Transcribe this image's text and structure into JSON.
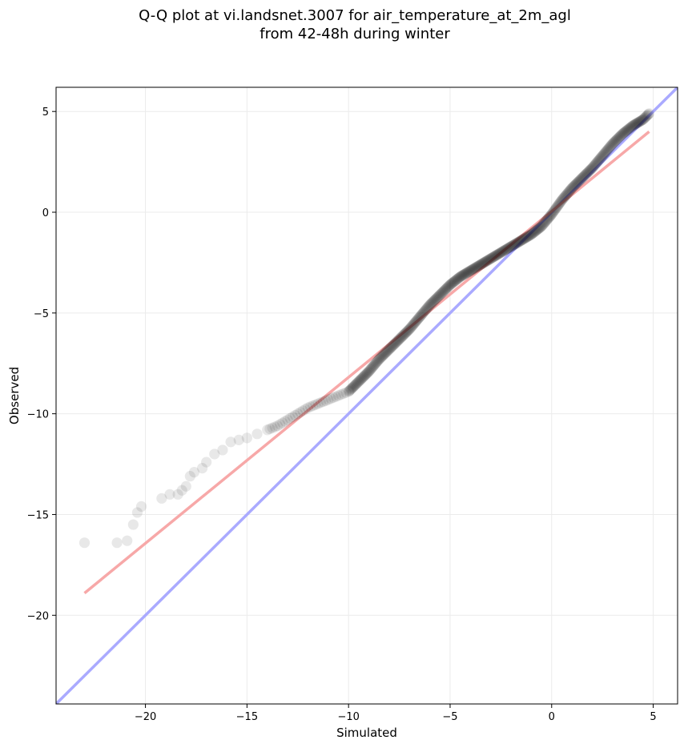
{
  "title_line1": "Q-Q plot at vi.landsnet.3007 for air_temperature_at_2m_agl",
  "title_line2": "from 42-48h during winter",
  "chart_data": {
    "type": "scatter",
    "xlabel": "Simulated",
    "ylabel": "Observed",
    "xlim": [
      -24.4,
      6.2
    ],
    "ylim": [
      -24.4,
      6.2
    ],
    "xticks": [
      -20,
      -15,
      -10,
      -5,
      0,
      5
    ],
    "yticks": [
      -20,
      -15,
      -10,
      -5,
      0,
      5
    ],
    "xtick_labels": [
      "−20",
      "−15",
      "−10",
      "−5",
      "0",
      "5"
    ],
    "ytick_labels": [
      "−20",
      "−15",
      "−10",
      "−5",
      "0",
      "5"
    ],
    "grid": true,
    "colors": {
      "points": "#000000",
      "identity_line": "#aaaaff",
      "fit_line": "#f7a8a8"
    },
    "identity_line": {
      "x": [
        -24.4,
        6.2
      ],
      "y": [
        -24.4,
        6.2
      ]
    },
    "fit_line": {
      "x": [
        -23.0,
        4.8
      ],
      "y": [
        -18.9,
        4.0
      ]
    },
    "qq_knots": {
      "x": [
        -23.0,
        -21.4,
        -20.9,
        -20.6,
        -20.4,
        -20.2,
        -19.2,
        -18.8,
        -18.4,
        -18.2,
        -18.0,
        -17.8,
        -17.6,
        -17.2,
        -17.0,
        -16.6,
        -16.2,
        -15.8,
        -15.4,
        -15.0,
        -14.5,
        -14.0,
        -13.5,
        -13.0,
        -12.5,
        -12.0,
        -11.5,
        -11.0,
        -10.5,
        -10.0,
        -9.5,
        -9.0,
        -8.5,
        -8.0,
        -7.5,
        -7.0,
        -6.5,
        -6.0,
        -5.5,
        -5.0,
        -4.5,
        -4.0,
        -3.5,
        -3.0,
        -2.5,
        -2.0,
        -1.5,
        -1.0,
        -0.5,
        0.0,
        0.5,
        1.0,
        1.5,
        2.0,
        2.5,
        3.0,
        3.5,
        4.0,
        4.5,
        4.8
      ],
      "y": [
        -16.4,
        -16.4,
        -16.3,
        -15.5,
        -14.9,
        -14.6,
        -14.2,
        -14.0,
        -14.0,
        -13.8,
        -13.6,
        -13.1,
        -12.9,
        -12.7,
        -12.4,
        -12.0,
        -11.8,
        -11.4,
        -11.3,
        -11.2,
        -11.0,
        -10.8,
        -10.6,
        -10.3,
        -10.0,
        -9.7,
        -9.5,
        -9.3,
        -9.1,
        -8.9,
        -8.4,
        -7.9,
        -7.3,
        -6.8,
        -6.3,
        -5.8,
        -5.2,
        -4.6,
        -4.1,
        -3.6,
        -3.2,
        -2.9,
        -2.6,
        -2.3,
        -2.0,
        -1.7,
        -1.4,
        -1.1,
        -0.7,
        -0.1,
        0.6,
        1.2,
        1.7,
        2.2,
        2.8,
        3.4,
        3.9,
        4.3,
        4.6,
        4.9
      ]
    },
    "point_count": 700
  }
}
